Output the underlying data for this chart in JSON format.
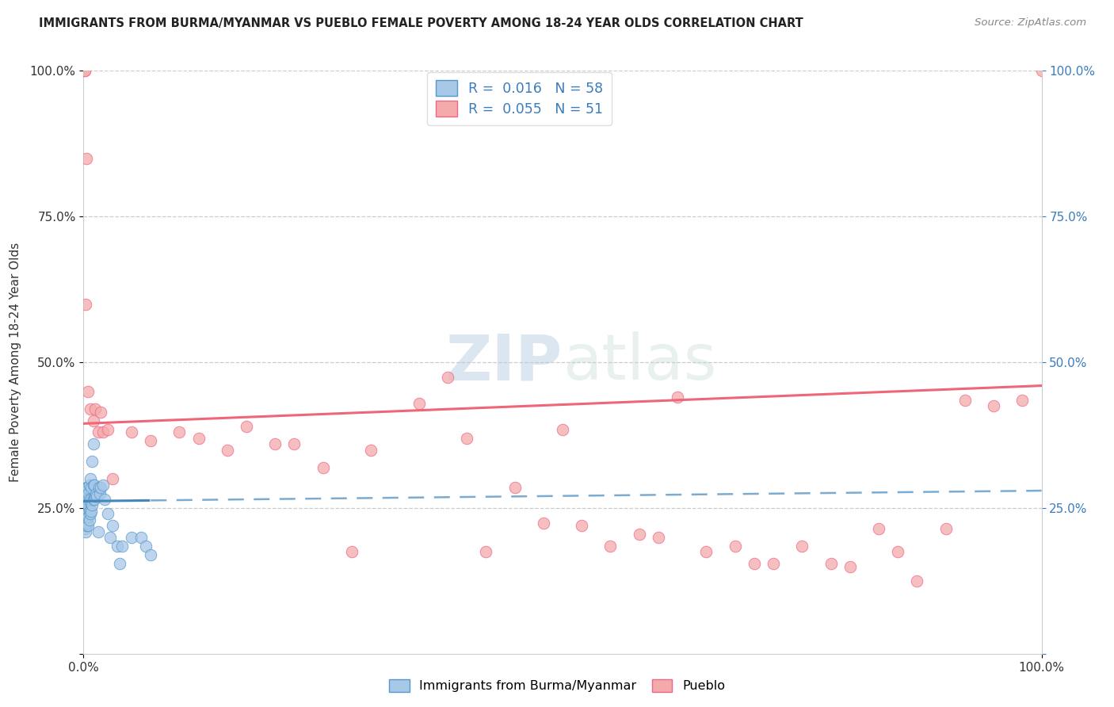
{
  "title": "IMMIGRANTS FROM BURMA/MYANMAR VS PUEBLO FEMALE POVERTY AMONG 18-24 YEAR OLDS CORRELATION CHART",
  "source": "Source: ZipAtlas.com",
  "ylabel": "Female Poverty Among 18-24 Year Olds",
  "legend_bottom": [
    "Immigrants from Burma/Myanmar",
    "Pueblo"
  ],
  "R_blue": 0.016,
  "N_blue": 58,
  "R_pink": 0.055,
  "N_pink": 51,
  "blue_fill": "#a8c8e8",
  "blue_edge": "#5599cc",
  "pink_fill": "#f4aaaa",
  "pink_edge": "#ee6688",
  "blue_line": "#4488bb",
  "pink_line": "#ee6677",
  "watermark_zip": "ZIP",
  "watermark_atlas": "atlas",
  "blue_scatter_x": [
    0.001,
    0.001,
    0.001,
    0.001,
    0.002,
    0.002,
    0.002,
    0.002,
    0.002,
    0.003,
    0.003,
    0.003,
    0.003,
    0.003,
    0.004,
    0.004,
    0.004,
    0.004,
    0.005,
    0.005,
    0.005,
    0.005,
    0.006,
    0.006,
    0.006,
    0.006,
    0.007,
    0.007,
    0.007,
    0.008,
    0.008,
    0.008,
    0.009,
    0.009,
    0.01,
    0.01,
    0.01,
    0.011,
    0.011,
    0.012,
    0.013,
    0.014,
    0.015,
    0.016,
    0.017,
    0.018,
    0.02,
    0.022,
    0.025,
    0.028,
    0.03,
    0.035,
    0.038,
    0.04,
    0.05,
    0.06,
    0.065,
    0.07
  ],
  "blue_scatter_y": [
    0.215,
    0.23,
    0.25,
    0.27,
    0.21,
    0.225,
    0.24,
    0.26,
    0.28,
    0.22,
    0.235,
    0.245,
    0.265,
    0.285,
    0.225,
    0.24,
    0.265,
    0.285,
    0.22,
    0.235,
    0.255,
    0.275,
    0.23,
    0.245,
    0.265,
    0.29,
    0.24,
    0.26,
    0.3,
    0.245,
    0.265,
    0.285,
    0.255,
    0.33,
    0.265,
    0.29,
    0.36,
    0.265,
    0.29,
    0.27,
    0.275,
    0.27,
    0.21,
    0.285,
    0.275,
    0.285,
    0.29,
    0.265,
    0.24,
    0.2,
    0.22,
    0.185,
    0.155,
    0.185,
    0.2,
    0.2,
    0.185,
    0.17
  ],
  "pink_scatter_x": [
    0.001,
    0.001,
    0.002,
    0.003,
    0.005,
    0.007,
    0.01,
    0.012,
    0.015,
    0.018,
    0.02,
    0.025,
    0.03,
    0.05,
    0.07,
    0.1,
    0.12,
    0.15,
    0.17,
    0.2,
    0.22,
    0.25,
    0.28,
    0.3,
    0.35,
    0.38,
    0.4,
    0.42,
    0.45,
    0.48,
    0.5,
    0.52,
    0.55,
    0.58,
    0.6,
    0.62,
    0.65,
    0.68,
    0.7,
    0.72,
    0.75,
    0.78,
    0.8,
    0.83,
    0.85,
    0.87,
    0.9,
    0.92,
    0.95,
    0.98,
    1.0
  ],
  "pink_scatter_y": [
    1.0,
    1.0,
    0.6,
    0.85,
    0.45,
    0.42,
    0.4,
    0.42,
    0.38,
    0.415,
    0.38,
    0.385,
    0.3,
    0.38,
    0.365,
    0.38,
    0.37,
    0.35,
    0.39,
    0.36,
    0.36,
    0.32,
    0.175,
    0.35,
    0.43,
    0.475,
    0.37,
    0.175,
    0.285,
    0.225,
    0.385,
    0.22,
    0.185,
    0.205,
    0.2,
    0.44,
    0.175,
    0.185,
    0.155,
    0.155,
    0.185,
    0.155,
    0.15,
    0.215,
    0.175,
    0.125,
    0.215,
    0.435,
    0.425,
    0.435,
    1.0
  ]
}
